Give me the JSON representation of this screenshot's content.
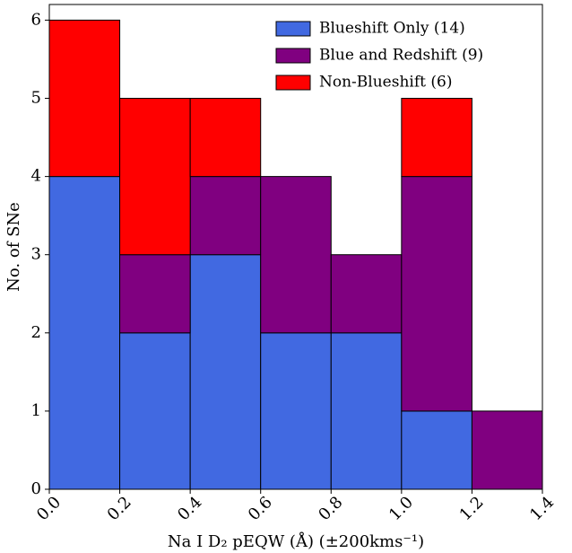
{
  "chart_data": {
    "type": "stacked-histogram",
    "xlabel": "Na I D₂ pEQW (Å) (±200kms⁻¹)",
    "ylabel": "No. of SNe",
    "bins": [
      {
        "value": 0,
        "label": "0.0"
      },
      0.2,
      0.4,
      0.6,
      0.8,
      {
        "value": 1,
        "label": "1.0"
      },
      1.2,
      1.4
    ],
    "series": [
      {
        "name": "Blueshift Only (14)",
        "color": "#4169e1",
        "values": [
          4,
          2,
          3,
          2,
          2,
          1,
          0
        ]
      },
      {
        "name": "Blue and Redshift (9)",
        "color": "#800080",
        "values": [
          0,
          1,
          1,
          2,
          1,
          3,
          1
        ]
      },
      {
        "name": "Non-Blueshift (6)",
        "color": "#ff0000",
        "values": [
          2,
          2,
          1,
          0,
          0,
          1,
          0
        ]
      }
    ],
    "xlim": [
      0,
      1.4
    ],
    "xticks": [
      {
        "value": 0,
        "label": "0.0"
      },
      0.2,
      0.4,
      0.6,
      0.8,
      {
        "value": 1,
        "label": "1.0"
      },
      1.2,
      1.4
    ],
    "ylim": [
      0,
      6.2
    ],
    "yticks": [
      0,
      1,
      2,
      3,
      4,
      5,
      6
    ],
    "legend": "upper right"
  }
}
